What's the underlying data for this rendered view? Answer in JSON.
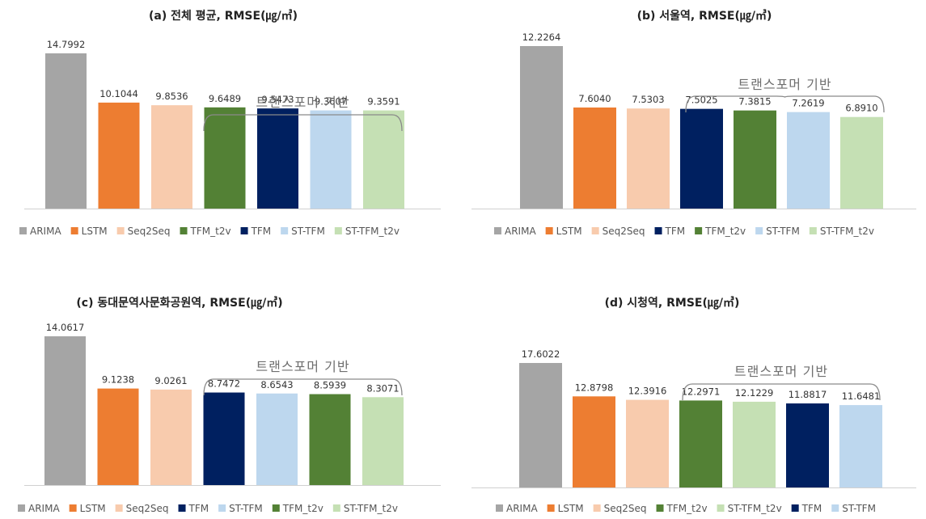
{
  "colors": {
    "ARIMA": "#a5a5a5",
    "LSTM": "#ed7d31",
    "Seq2Seq": "#f8cbad",
    "TFM": "#002060",
    "TFM_t2v": "#538135",
    "ST-TFM": "#bdd7ee",
    "ST-TFM_t2v": "#c5e0b4"
  },
  "annotation_label": "트랜스포머 기반",
  "chart_data": [
    {
      "type": "bar",
      "title": "(a) 전체 평균, RMSE(㎍/㎥)",
      "categories": [
        "ARIMA",
        "LSTM",
        "Seq2Seq",
        "TFM_t2v",
        "TFM",
        "ST-TFM",
        "ST-TFM_t2v"
      ],
      "values": [
        14.7992,
        10.1044,
        9.8536,
        9.6489,
        9.5473,
        9.3607,
        9.3591
      ],
      "value_labels": [
        "14.7992",
        "10.1044",
        "9.8536",
        "9.6489",
        "9.5473",
        "9.3607",
        "9.3591"
      ],
      "annotation": {
        "text": "트랜스포머 기반",
        "from_index": 3,
        "to_index": 6
      }
    },
    {
      "type": "bar",
      "title": "(b) 서울역, RMSE(㎍/㎥)",
      "categories": [
        "ARIMA",
        "LSTM",
        "Seq2Seq",
        "TFM",
        "TFM_t2v",
        "ST-TFM",
        "ST-TFM_t2v"
      ],
      "values": [
        12.2264,
        7.604,
        7.5303,
        7.5025,
        7.3815,
        7.2619,
        6.891
      ],
      "value_labels": [
        "12.2264",
        "7.6040",
        "7.5303",
        "7.5025",
        "7.3815",
        "7.2619",
        "6.8910"
      ],
      "annotation": {
        "text": "트랜스포머 기반",
        "from_index": 3,
        "to_index": 6
      }
    },
    {
      "type": "bar",
      "title": "(c) 동대문역사문화공원역, RMSE(㎍/㎥)",
      "categories": [
        "ARIMA",
        "LSTM",
        "Seq2Seq",
        "TFM",
        "ST-TFM",
        "TFM_t2v",
        "ST-TFM_t2v"
      ],
      "values": [
        14.0617,
        9.1238,
        9.0261,
        8.7472,
        8.6543,
        8.5939,
        8.3071
      ],
      "value_labels": [
        "14.0617",
        "9.1238",
        "9.0261",
        "8.7472",
        "8.6543",
        "8.5939",
        "8.3071"
      ],
      "annotation": {
        "text": "트랜스포머 기반",
        "from_index": 3,
        "to_index": 6
      }
    },
    {
      "type": "bar",
      "title": "(d) 시청역, RMSE(㎍/㎥)",
      "categories": [
        "ARIMA",
        "LSTM",
        "Seq2Seq",
        "TFM_t2v",
        "ST-TFM_t2v",
        "TFM",
        "ST-TFM"
      ],
      "values": [
        17.6022,
        12.8798,
        12.3916,
        12.2971,
        12.1229,
        11.8817,
        11.6481
      ],
      "value_labels": [
        "17.6022",
        "12.8798",
        "12.3916",
        "12.2971",
        "12.1229",
        "11.8817",
        "11.6481"
      ],
      "annotation": {
        "text": "트랜스포머 기반",
        "from_index": 3,
        "to_index": 6
      }
    }
  ]
}
